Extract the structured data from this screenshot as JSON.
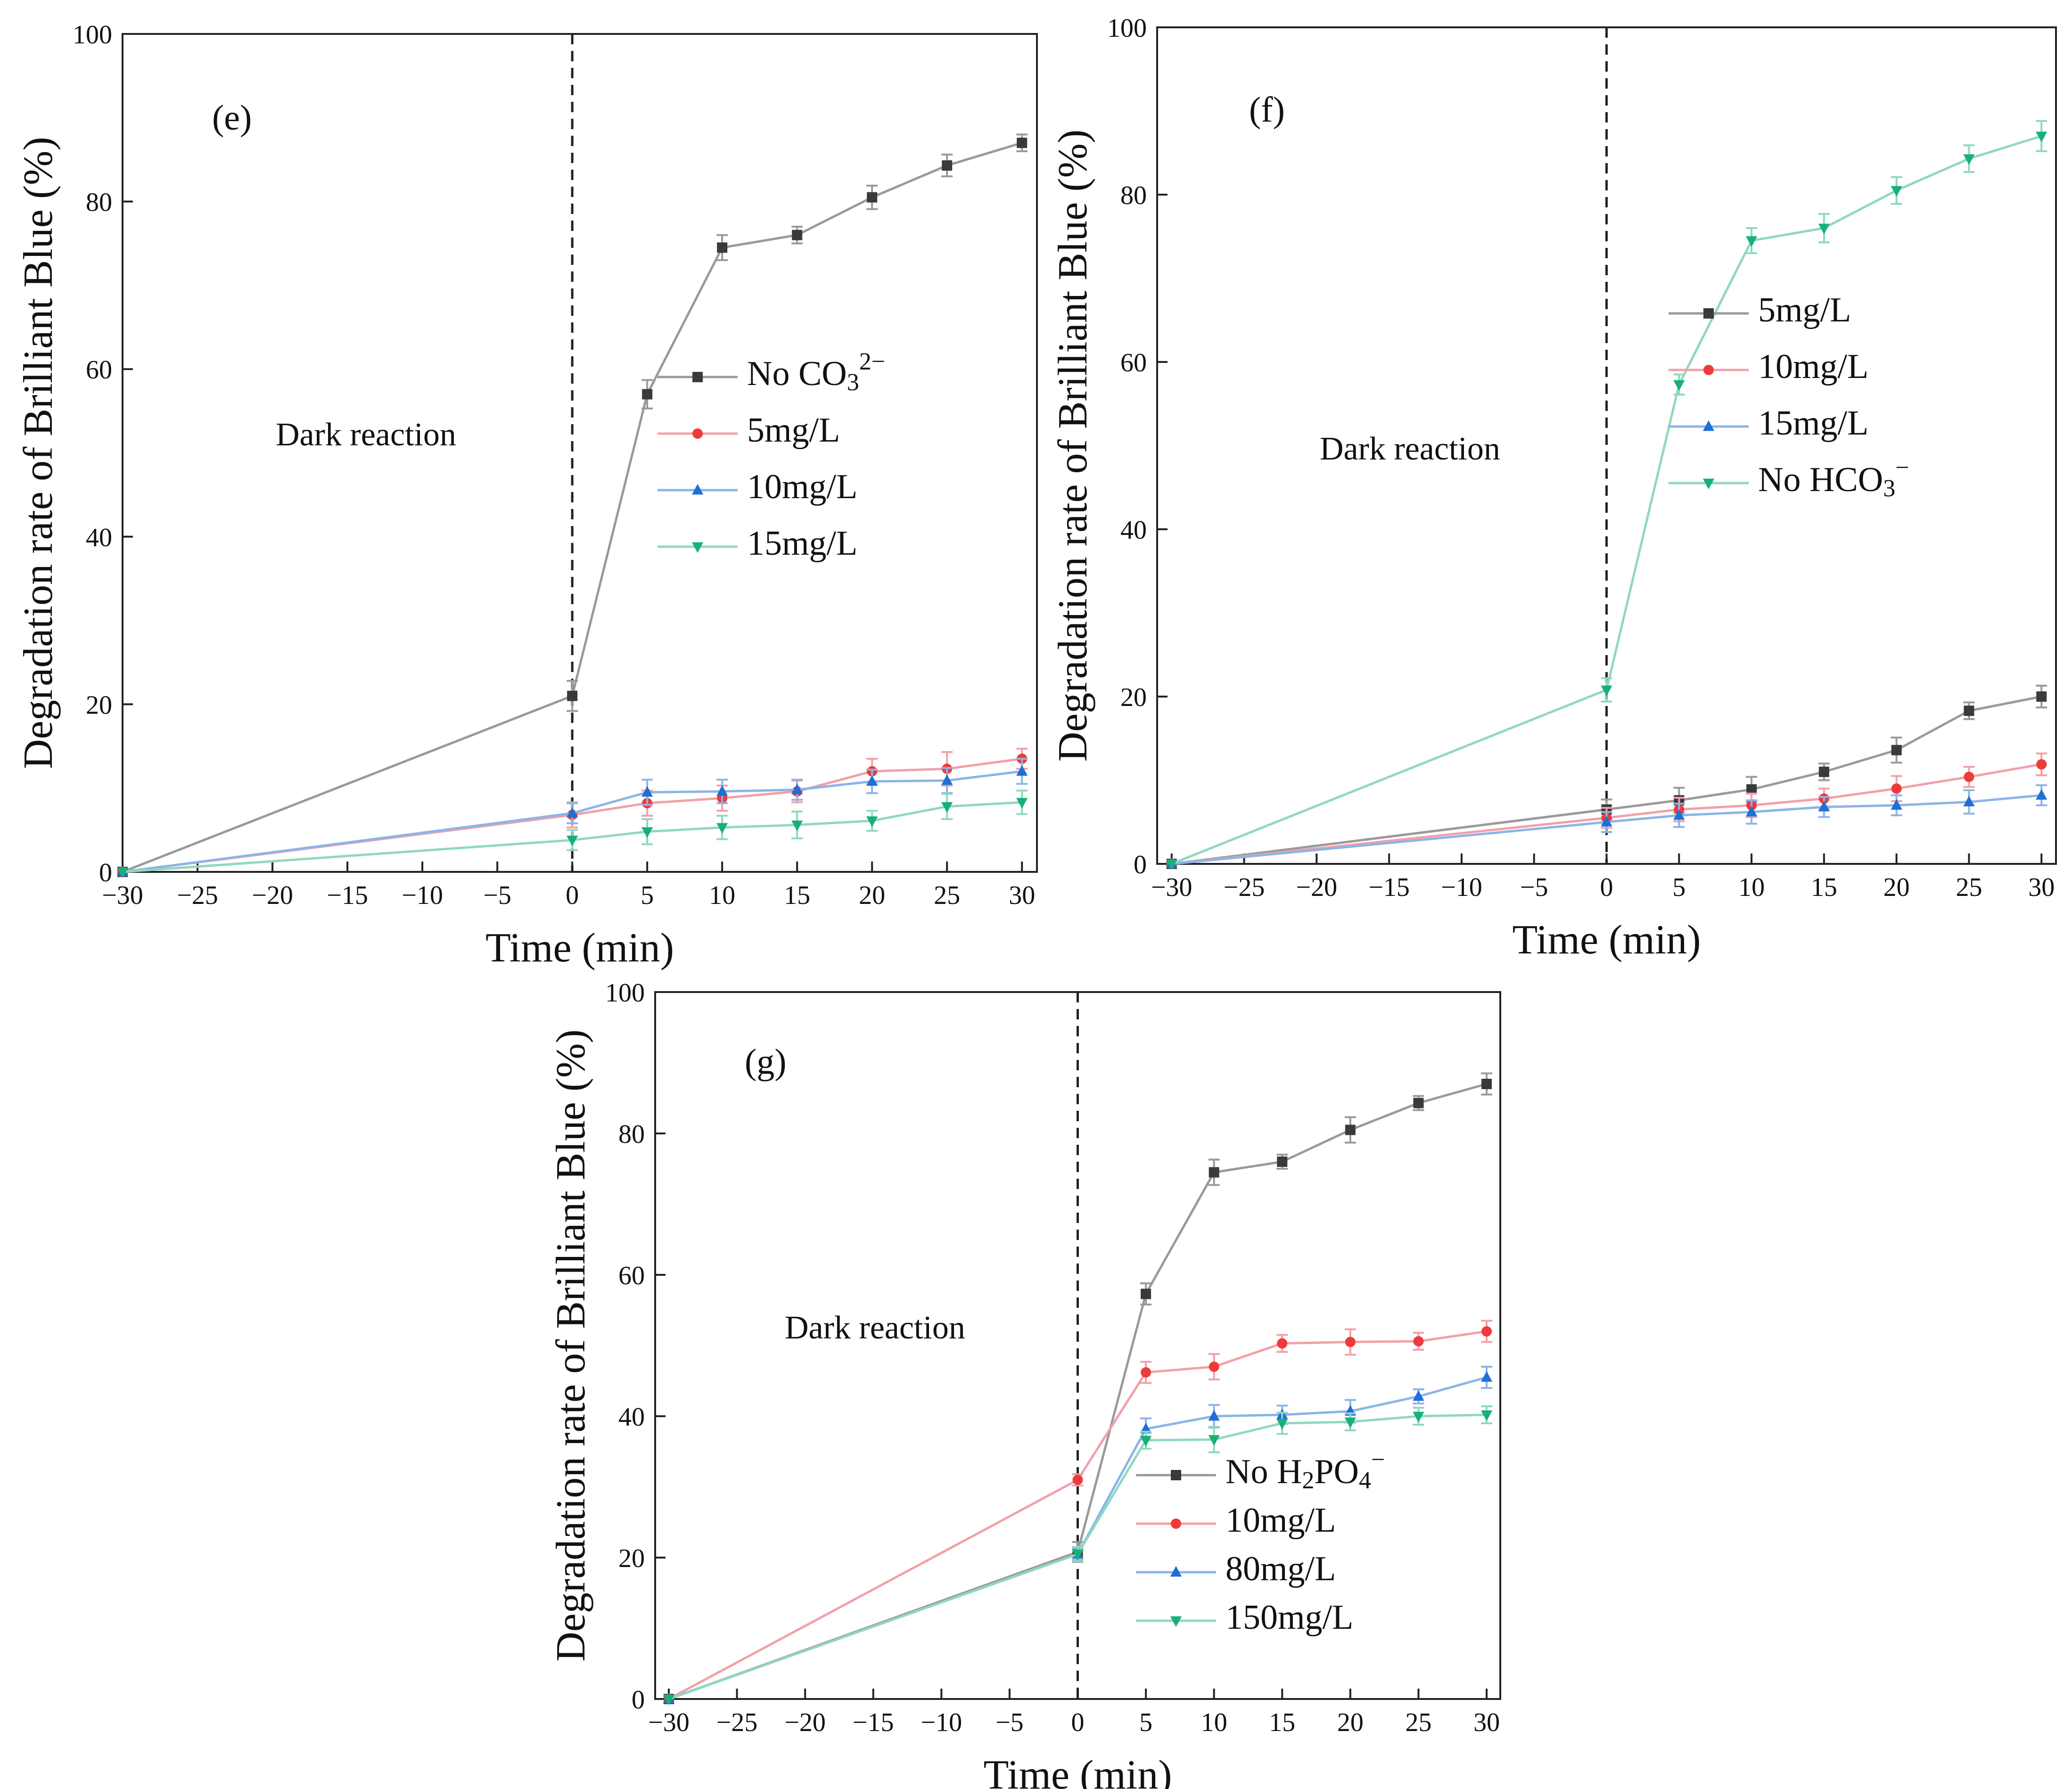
{
  "figure": {
    "background": "#ffffff",
    "series_colors": {
      "gray": "#9a9a9a",
      "red": "#f2a0a8",
      "blue": "#8cb4e8",
      "green": "#8fd8bf"
    },
    "marker_colors": {
      "gray": "#3a3a3a",
      "red": "#ee3a3a",
      "blue": "#1f6fd6",
      "green": "#17b07a"
    },
    "marker_shapes": {
      "gray": "square",
      "red": "circle",
      "blue": "triangle-up",
      "green": "triangle-down"
    }
  },
  "chart_data": [
    {
      "id": "e",
      "type": "line",
      "panel_label": "(e)",
      "annotation": "Dark reaction",
      "xlabel": "Time (min)",
      "ylabel": "Degradation rate of Brilliant Blue (%)",
      "xlim": [
        -30,
        31
      ],
      "ylim": [
        0,
        100
      ],
      "xticks": [
        -30,
        -25,
        -20,
        -15,
        -10,
        -5,
        0,
        5,
        10,
        15,
        20,
        25,
        30
      ],
      "xtick_labels": [
        "−30",
        "−25",
        "−20",
        "−15",
        "−10",
        "−5",
        "0",
        "5",
        "10",
        "15",
        "20",
        "25",
        "30"
      ],
      "yticks": [
        0,
        20,
        40,
        60,
        80,
        100
      ],
      "ytick_labels": [
        "0",
        "20",
        "40",
        "60",
        "80",
        "100"
      ],
      "dashed_x": 0,
      "legend_position": "center-right",
      "x": [
        -30,
        0,
        5,
        10,
        15,
        20,
        25,
        30
      ],
      "series": [
        {
          "name": "No CO₃²⁻",
          "name_base": "No CO",
          "name_sub": "3",
          "name_sup": "2−",
          "color": "gray",
          "values": [
            0,
            21,
            57,
            74.5,
            76,
            80.5,
            84.3,
            87
          ],
          "errors": [
            0,
            1.8,
            1.7,
            1.5,
            1,
            1.4,
            1.3,
            1
          ]
        },
        {
          "name": "5mg/L",
          "color": "red",
          "values": [
            0,
            6.8,
            8.2,
            8.8,
            9.6,
            12,
            12.3,
            13.5
          ],
          "errors": [
            0,
            1.5,
            1.5,
            1.5,
            1.3,
            1.5,
            2,
            1.2
          ]
        },
        {
          "name": "10mg/L",
          "color": "blue",
          "values": [
            0,
            7,
            9.5,
            9.6,
            9.8,
            10.8,
            10.9,
            12
          ],
          "errors": [
            0,
            1.2,
            1.5,
            1.4,
            1.2,
            1.4,
            1.5,
            1.5
          ]
        },
        {
          "name": "15mg/L",
          "color": "green",
          "values": [
            0,
            3.8,
            4.8,
            5.3,
            5.6,
            6.1,
            7.8,
            8.3
          ],
          "errors": [
            0,
            1.2,
            1.5,
            1.4,
            1.6,
            1.2,
            1.5,
            1.4
          ]
        }
      ]
    },
    {
      "id": "f",
      "type": "line",
      "panel_label": "(f)",
      "annotation": "Dark reaction",
      "xlabel": "Time (min)",
      "ylabel": "Degradation rate of Brilliant Blue (%)",
      "xlim": [
        -31,
        31
      ],
      "ylim": [
        0,
        100
      ],
      "xticks": [
        -30,
        -25,
        -20,
        -15,
        -10,
        -5,
        0,
        5,
        10,
        15,
        20,
        25,
        30
      ],
      "xtick_labels": [
        "−30",
        "−25",
        "−20",
        "−15",
        "−10",
        "−5",
        "0",
        "5",
        "10",
        "15",
        "20",
        "25",
        "30"
      ],
      "yticks": [
        0,
        20,
        40,
        60,
        80,
        100
      ],
      "ytick_labels": [
        "0",
        "20",
        "40",
        "60",
        "80",
        "100"
      ],
      "dashed_x": 0,
      "legend_position": "upper-right",
      "x": [
        -30,
        0,
        5,
        10,
        15,
        20,
        25,
        30
      ],
      "series": [
        {
          "name": "5mg/L",
          "color": "gray",
          "values": [
            0,
            6.5,
            7.6,
            8.9,
            11,
            13.6,
            18.3,
            20
          ],
          "errors": [
            0,
            1.2,
            1.5,
            1.5,
            1,
            1.5,
            1,
            1.3
          ]
        },
        {
          "name": "10mg/L",
          "color": "red",
          "values": [
            0,
            5.5,
            6.5,
            7,
            7.8,
            9,
            10.4,
            11.9
          ],
          "errors": [
            0,
            1.2,
            1.4,
            1.4,
            1.2,
            1.5,
            1.2,
            1.3
          ]
        },
        {
          "name": "15mg/L",
          "color": "blue",
          "values": [
            0,
            5,
            5.8,
            6.2,
            6.8,
            7,
            7.4,
            8.2
          ],
          "errors": [
            0,
            1.2,
            1.4,
            1.4,
            1.2,
            1.2,
            1.4,
            1.2
          ]
        },
        {
          "name": "No HCO₃⁻",
          "name_base": "No HCO",
          "name_sub": "3",
          "name_sup": "−",
          "color": "green",
          "values": [
            0,
            20.8,
            57.3,
            74.5,
            76,
            80.5,
            84.3,
            87
          ],
          "errors": [
            0,
            1.4,
            1.2,
            1.5,
            1.7,
            1.6,
            1.6,
            1.8
          ]
        }
      ]
    },
    {
      "id": "g",
      "type": "line",
      "panel_label": "(g)",
      "annotation": "Dark reaction",
      "xlabel": "Time (min)",
      "ylabel": "Degradation rate of Brilliant Blue (%)",
      "xlim": [
        -31,
        31
      ],
      "ylim": [
        0,
        100
      ],
      "xticks": [
        -30,
        -25,
        -20,
        -15,
        -10,
        -5,
        0,
        5,
        10,
        15,
        20,
        25,
        30
      ],
      "xtick_labels": [
        "−30",
        "−25",
        "−20",
        "−15",
        "−10",
        "−5",
        "0",
        "5",
        "10",
        "15",
        "20",
        "25",
        "30"
      ],
      "yticks": [
        0,
        20,
        40,
        60,
        80,
        100
      ],
      "ytick_labels": [
        "0",
        "20",
        "40",
        "60",
        "80",
        "100"
      ],
      "dashed_x": 0,
      "legend_position": "lower-right",
      "x": [
        -30,
        0,
        5,
        10,
        15,
        20,
        25,
        30
      ],
      "series": [
        {
          "name": "No H₂PO₄⁻",
          "name_base": "No H",
          "name_sub": "2",
          "name_mid": "PO",
          "name_sub2": "4",
          "name_sup": "−",
          "color": "gray",
          "values": [
            0,
            20.8,
            57.3,
            74.5,
            76,
            80.5,
            84.3,
            87
          ],
          "errors": [
            0,
            1.4,
            1.5,
            1.8,
            1,
            1.8,
            1,
            1.5
          ]
        },
        {
          "name": "10mg/L",
          "color": "red",
          "values": [
            0,
            31,
            46.2,
            47,
            50.3,
            50.5,
            50.6,
            52
          ],
          "errors": [
            0,
            0.8,
            1.5,
            1.8,
            1.2,
            1.8,
            1.2,
            1.5
          ]
        },
        {
          "name": "80mg/L",
          "color": "blue",
          "values": [
            0,
            20.5,
            38.2,
            40,
            40.2,
            40.7,
            42.8,
            45.5
          ],
          "errors": [
            0,
            0.8,
            1.5,
            1.6,
            1.3,
            1.6,
            1,
            1.5
          ]
        },
        {
          "name": "150mg/L",
          "color": "green",
          "values": [
            0,
            20.5,
            36.6,
            36.7,
            39,
            39.2,
            40,
            40.2
          ],
          "errors": [
            0,
            1,
            1.2,
            1.8,
            1.5,
            1.2,
            1.2,
            1.2
          ]
        }
      ]
    }
  ]
}
